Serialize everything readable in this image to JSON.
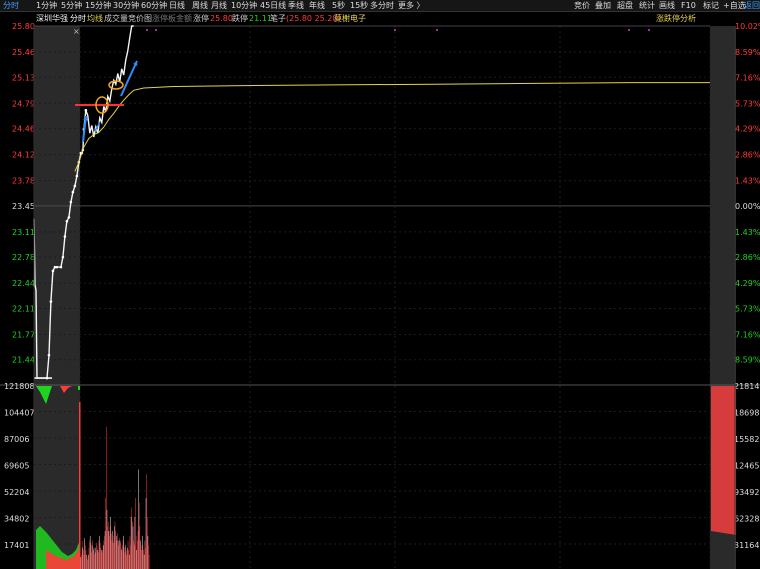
{
  "toolbar": {
    "tabs": [
      "分时",
      "1分钟",
      "5分钟",
      "15分钟",
      "30分钟",
      "60分钟",
      "日线",
      "周线",
      "月线",
      "10分钟",
      "45日线",
      "季线",
      "年线",
      "5秒",
      "15秒",
      "多分时",
      "更多 〉"
    ],
    "active_tab": "分时",
    "right_buttons": [
      "竞价",
      "叠加",
      "超盘",
      "统计",
      "画线",
      "F10",
      "标记",
      "+自选",
      "返回"
    ]
  },
  "infobar": {
    "stock_name": "深圳华强",
    "mode": "分时",
    "avg_line": "均线",
    "volume": "成交量",
    "auction": "竞价图",
    "limit_fund": "涨停板金额",
    "limit_up_label": "涨停",
    "limit_up_value": "25.80",
    "limit_down_label": "跌停",
    "limit_down_value": "21.11",
    "pen_label": "笔子",
    "pen_value": "(25.80 25.28)",
    "other": "莫榭电子",
    "analysis": "涨跌停分析"
  },
  "chart_data": {
    "type": "line",
    "price_ticks_left": [
      "25.80",
      "25.46",
      "25.13",
      "24.79",
      "24.46",
      "24.12",
      "23.78",
      "23.45",
      "23.11",
      "22.78",
      "22.44",
      "22.11",
      "21.77",
      "21.44"
    ],
    "pct_ticks_right": [
      "10.02%",
      "8.59%",
      "7.16%",
      "5.73%",
      "4.29%",
      "2.86%",
      "1.43%",
      "0.00%",
      "1.43%",
      "2.86%",
      "4.29%",
      "5.73%",
      "7.16%",
      "8.59%"
    ],
    "prev_close": 23.45,
    "ylim": [
      21.11,
      25.8
    ],
    "volume_ticks_left": [
      "121808",
      "104407",
      "87006",
      "69605",
      "52204",
      "34802",
      "17401"
    ],
    "volume_ticks_right": [
      "218149",
      "186985",
      "155821",
      "124656",
      "93492",
      "62328",
      "31164"
    ],
    "price_series": [
      [
        0,
        23.28
      ],
      [
        1,
        22.42
      ],
      [
        2,
        22.35
      ],
      [
        3,
        21.2
      ],
      [
        13,
        21.2
      ],
      [
        15,
        21.5
      ],
      [
        17,
        22.2
      ],
      [
        19,
        22.6
      ],
      [
        21,
        22.65
      ],
      [
        23,
        22.65
      ],
      [
        27,
        22.65
      ],
      [
        29,
        22.78
      ],
      [
        31,
        23.05
      ],
      [
        33,
        23.25
      ],
      [
        35,
        23.3
      ],
      [
        37,
        23.5
      ],
      [
        39,
        23.63
      ],
      [
        41,
        23.71
      ],
      [
        43,
        23.84
      ],
      [
        45,
        24.02
      ],
      [
        47,
        24.14
      ],
      [
        48,
        24.14
      ],
      [
        49,
        24.18
      ],
      [
        50,
        24.45
      ],
      [
        52,
        24.7
      ],
      [
        54,
        24.63
      ],
      [
        56,
        24.4
      ],
      [
        58,
        24.5
      ],
      [
        60,
        24.35
      ],
      [
        62,
        24.48
      ],
      [
        64,
        24.4
      ],
      [
        66,
        24.6
      ],
      [
        68,
        24.54
      ],
      [
        70,
        24.75
      ],
      [
        72,
        24.68
      ],
      [
        74,
        24.88
      ],
      [
        76,
        24.82
      ],
      [
        78,
        24.98
      ],
      [
        80,
        25.09
      ],
      [
        82,
        25.04
      ],
      [
        84,
        25.18
      ],
      [
        86,
        25.07
      ],
      [
        88,
        25.24
      ],
      [
        90,
        25.16
      ],
      [
        92,
        25.35
      ],
      [
        94,
        25.47
      ],
      [
        96,
        25.64
      ],
      [
        98,
        25.8
      ],
      [
        100,
        25.8
      ]
    ],
    "avg_series": [
      [
        41,
        23.9
      ],
      [
        45,
        24.02
      ],
      [
        50,
        24.22
      ],
      [
        55,
        24.33
      ],
      [
        60,
        24.38
      ],
      [
        65,
        24.41
      ],
      [
        70,
        24.48
      ],
      [
        75,
        24.58
      ],
      [
        80,
        24.66
      ],
      [
        85,
        24.75
      ],
      [
        90,
        24.83
      ],
      [
        95,
        24.9
      ],
      [
        100,
        24.96
      ],
      [
        110,
        24.99
      ],
      [
        140,
        25.01
      ],
      [
        200,
        25.02
      ],
      [
        300,
        25.03
      ],
      [
        400,
        25.04
      ],
      [
        500,
        25.05
      ],
      [
        600,
        25.06
      ],
      [
        678,
        25.06
      ]
    ],
    "volume": [
      4,
      5,
      6,
      12,
      9,
      8,
      6,
      13,
      10,
      8,
      6,
      5,
      4,
      6,
      9,
      12,
      14,
      11,
      7,
      10,
      12,
      8,
      9,
      6,
      7,
      9,
      11,
      10,
      8,
      7,
      12,
      14,
      11,
      9,
      8,
      7,
      8,
      10,
      12,
      14,
      16,
      30,
      60,
      25,
      18,
      20,
      16,
      14,
      18,
      22,
      15,
      12,
      16,
      14,
      11,
      18,
      20,
      16,
      14,
      12,
      15,
      12,
      10,
      13,
      12,
      11,
      9,
      8,
      10,
      12,
      14,
      9,
      7,
      10,
      8,
      6,
      9,
      12,
      8,
      6,
      14,
      10,
      22,
      26,
      20,
      18,
      12,
      10,
      22,
      30,
      14,
      8,
      12,
      16,
      42,
      28,
      18,
      12,
      10,
      8,
      14,
      10,
      8,
      6,
      12,
      9,
      30,
      40,
      22,
      14,
      10,
      6
    ],
    "volume_colors_note": "red up, green down, grey neutral"
  },
  "colors": {
    "up": "#ff3b3b",
    "down": "#1fd31f",
    "neutral": "#e0e0e0",
    "avg": "#e6d24a",
    "arrow": "#2f8cff",
    "circle": "#f2a41c",
    "grid": "#2a2a2a"
  }
}
